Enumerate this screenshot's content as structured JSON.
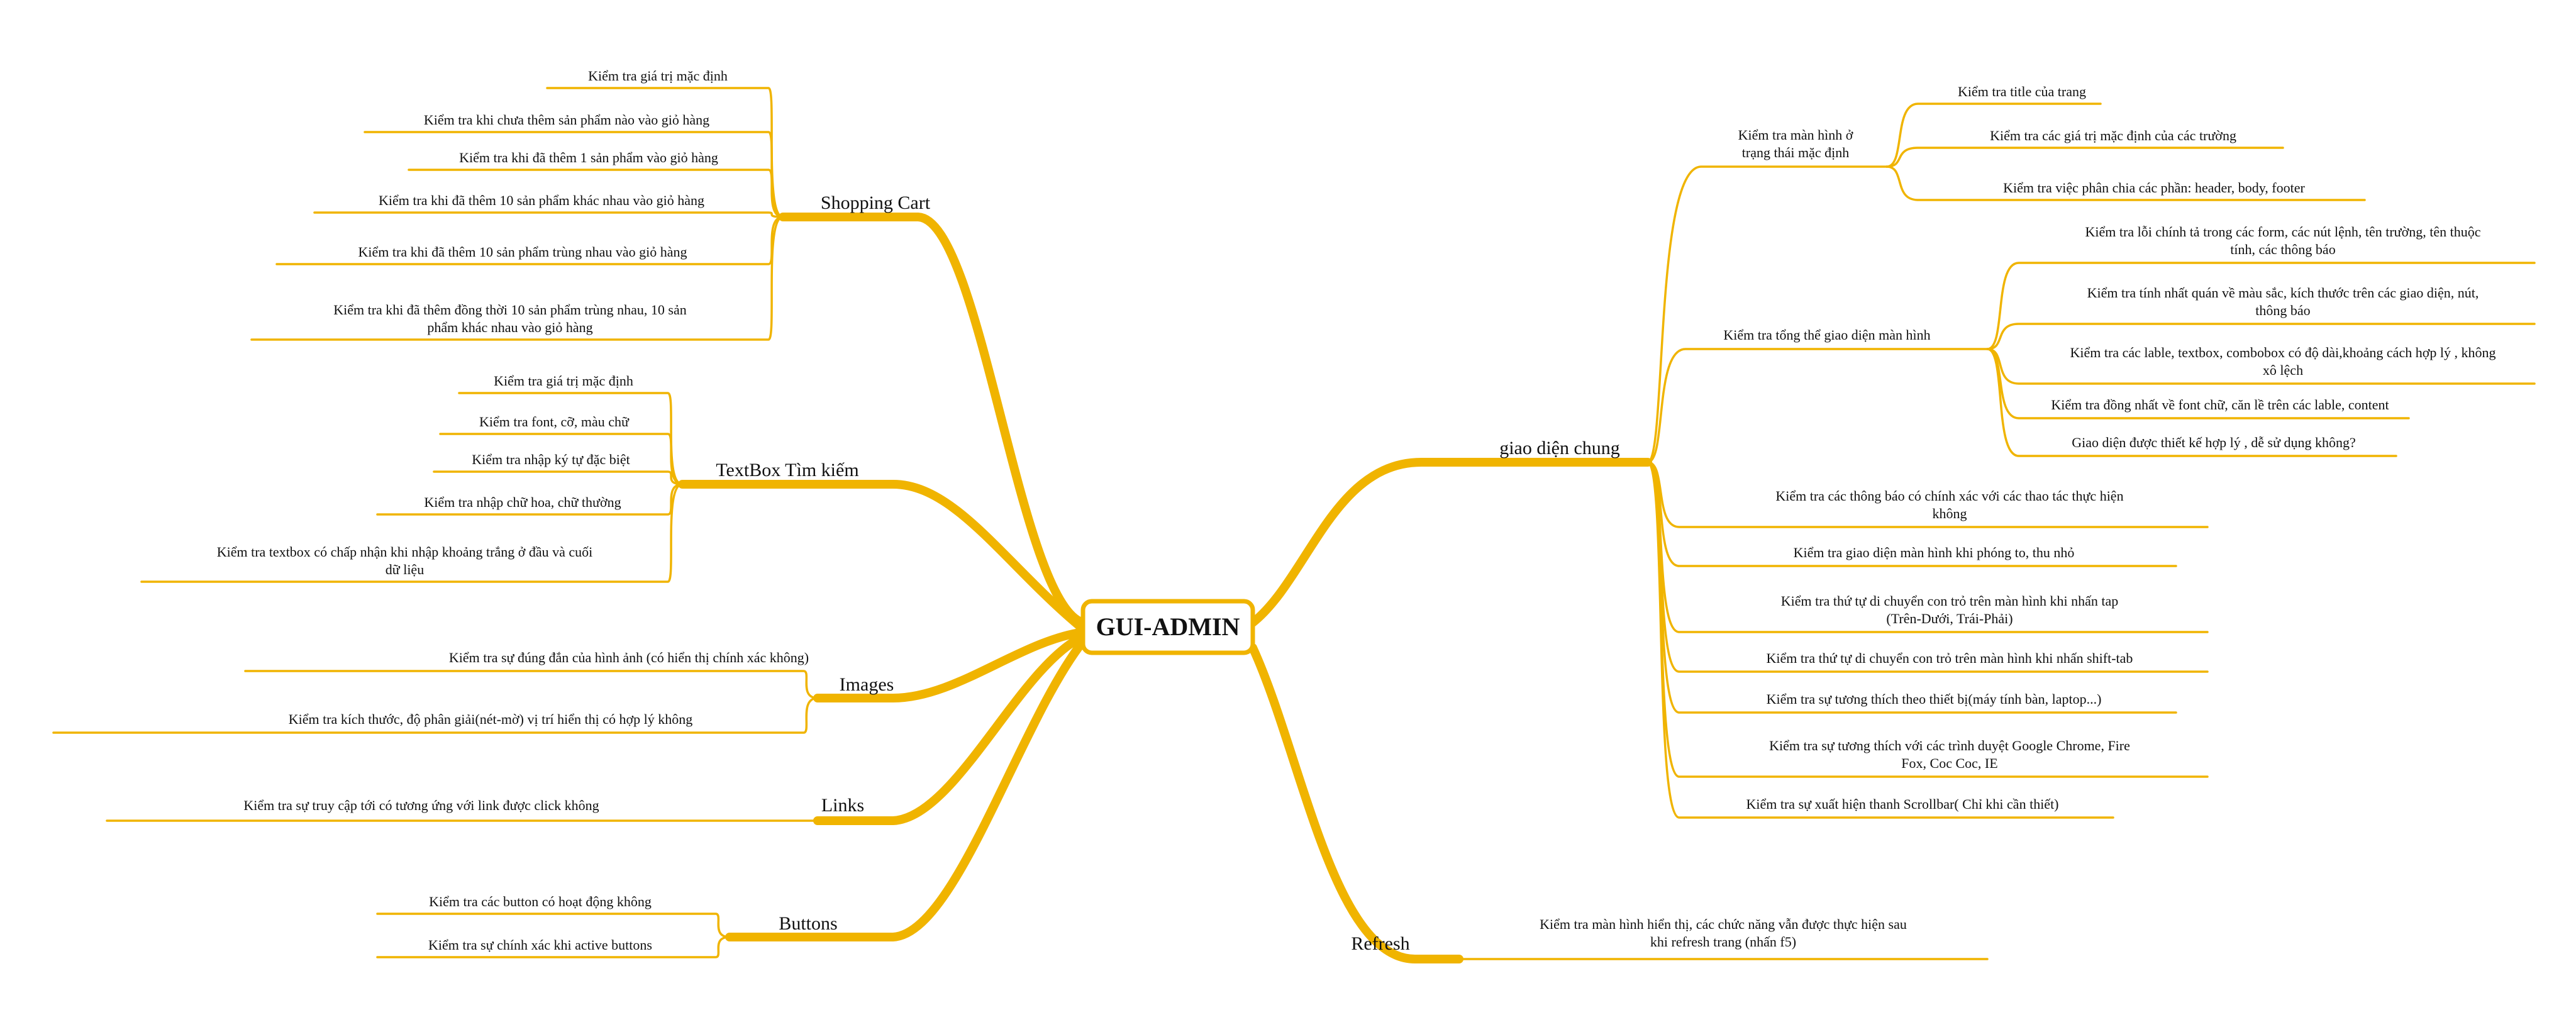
{
  "root": {
    "label": "GUI-ADMIN"
  },
  "branches": {
    "shopping_cart": {
      "label": "Shopping Cart",
      "items": [
        "Kiểm tra giá trị mặc định",
        "Kiểm tra khi chưa thêm sản phẩm nào vào giỏ hàng",
        "Kiểm tra khi đã thêm 1 sản phẩm vào giỏ hàng",
        "Kiểm tra khi đã thêm 10 sản phẩm khác nhau vào giỏ hàng",
        "Kiểm tra khi đã thêm 10 sản phẩm trùng nhau vào giỏ hàng",
        [
          "Kiểm tra khi đã thêm đồng thời 10 sản phẩm trùng nhau, 10 sản",
          "phẩm khác nhau vào giỏ hàng"
        ]
      ]
    },
    "textbox": {
      "label": "TextBox Tìm kiếm",
      "items": [
        "Kiểm tra giá trị mặc định",
        "Kiểm tra font, cỡ, màu chữ",
        "Kiểm tra nhập ký tự đặc biệt",
        "Kiểm tra nhập chữ hoa, chữ thường",
        [
          "Kiểm tra textbox có chấp nhận khi nhập khoảng trắng ở đầu và cuối",
          "dữ liệu"
        ]
      ]
    },
    "images": {
      "label": "Images",
      "items": [
        "Kiểm tra sự đúng đắn của hình ảnh (có hiển thị chính xác không)",
        "Kiểm tra kích thước, độ phân giải(nét-mờ) vị trí hiển thị có hợp lý không"
      ]
    },
    "links": {
      "label": "Links",
      "items": [
        "Kiểm tra sự truy cập tới có tương ứng với link được click không"
      ]
    },
    "buttons": {
      "label": "Buttons",
      "items": [
        "Kiểm tra các button có hoạt động không",
        "Kiểm tra sự chính xác khi active buttons"
      ]
    },
    "giao_dien_chung": {
      "label": "giao diện chung",
      "groups": [
        {
          "label": [
            "Kiểm tra màn hình ở",
            "trạng thái mặc định"
          ],
          "items": [
            "Kiểm tra title của trang",
            "Kiểm tra các giá trị mặc định của các trường",
            "Kiểm tra việc phân chia các phần: header, body, footer"
          ]
        },
        {
          "label": "Kiểm tra tổng thể giao diện màn hình",
          "items": [
            [
              "Kiểm tra lỗi chính tả trong các form, các nút lệnh, tên trường, tên thuộc",
              "tính, các thông báo"
            ],
            [
              "Kiểm tra tính nhất quán về màu sắc, kích thước trên các giao diện, nút,",
              "thông báo"
            ],
            [
              "Kiểm tra các lable, textbox, combobox có độ dài,khoảng cách hợp lý , không",
              "xô lệch"
            ],
            "Kiểm tra đồng nhất về font chữ, căn lề trên các lable, content",
            "Giao diện được thiết kế hợp lý , dễ sử dụng không?"
          ]
        }
      ],
      "items": [
        [
          "Kiểm tra các thông báo có chính xác với các thao tác thực hiện",
          "không"
        ],
        "Kiểm tra giao diện màn hình khi phóng to, thu nhỏ",
        [
          "Kiểm tra thứ tự di chuyển con trỏ trên màn hình khi nhấn tap",
          "(Trên-Dưới, Trái-Phải)"
        ],
        "Kiểm tra thứ tự di chuyển con trỏ trên màn hình khi nhấn shift-tab",
        "Kiểm tra sự tương thích theo thiết bị(máy tính bàn, laptop...)",
        [
          "Kiểm tra sự tương thích với các trình duyệt Google Chrome, Fire",
          "Fox, Coc Coc, IE"
        ],
        "Kiểm tra sự xuất hiện thanh Scrollbar( Chỉ khi cần thiết)"
      ]
    },
    "refresh": {
      "label": "Refresh",
      "items": [
        [
          "Kiểm tra màn hình hiển thị, các chức năng vẫn được thực hiện sau",
          "khi refresh trang (nhấn f5)"
        ]
      ]
    }
  },
  "colors": {
    "connector": "#f0b400",
    "root_border": "#f0b400",
    "root_fill": "#ffffff",
    "text": "#111111"
  }
}
